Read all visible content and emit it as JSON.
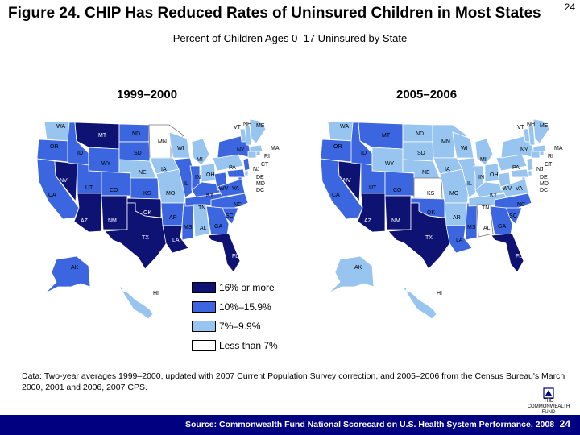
{
  "title": "Figure 24. CHIP Has Reduced Rates of Uninsured Children in Most States",
  "slide_number_top": "24",
  "subtitle": "Percent of Children Ages 0–17 Uninsured by State",
  "colors": {
    "cat1": "#0d1273",
    "cat2": "#3c66e0",
    "cat3": "#98c4f0",
    "cat4": "#ffffff",
    "footer_bg": "#000080",
    "border": "#ffffff"
  },
  "legend": [
    {
      "label": "16% or more",
      "color": "#0d1273"
    },
    {
      "label": "10%–15.9%",
      "color": "#3c66e0"
    },
    {
      "label": "7%–9.9%",
      "color": "#98c4f0"
    },
    {
      "label": "Less than 7%",
      "color": "#ffffff"
    }
  ],
  "maps": [
    {
      "period": "1999–2000",
      "states": {
        "WA": 3,
        "OR": 2,
        "CA": 2,
        "NV": 1,
        "ID": 2,
        "MT": 1,
        "WY": 2,
        "UT": 2,
        "AZ": 1,
        "CO": 2,
        "NM": 1,
        "ND": 2,
        "SD": 2,
        "NE": 3,
        "KS": 2,
        "OK": 1,
        "TX": 1,
        "MN": 4,
        "IA": 3,
        "MO": 3,
        "AR": 2,
        "LA": 1,
        "WI": 3,
        "IL": 2,
        "MS": 2,
        "MI": 3,
        "IN": 2,
        "KY": 2,
        "TN": 2,
        "AL": 3,
        "OH": 3,
        "WV": 2,
        "VA": 2,
        "NC": 2,
        "SC": 2,
        "GA": 2,
        "FL": 1,
        "PA": 3,
        "NY": 2,
        "VT": 3,
        "NH": 3,
        "ME": 3,
        "MA": 3,
        "RI": 3,
        "CT": 3,
        "NJ": 2,
        "DE": 3,
        "MD": 2,
        "DC": 2,
        "AK": 2,
        "HI": 3
      }
    },
    {
      "period": "2005–2006",
      "states": {
        "WA": 3,
        "OR": 2,
        "CA": 2,
        "NV": 1,
        "ID": 2,
        "MT": 2,
        "WY": 3,
        "UT": 2,
        "AZ": 1,
        "CO": 2,
        "NM": 1,
        "ND": 3,
        "SD": 3,
        "NE": 3,
        "KS": 4,
        "OK": 2,
        "TX": 1,
        "MN": 3,
        "IA": 3,
        "MO": 3,
        "AR": 3,
        "LA": 2,
        "WI": 3,
        "IL": 3,
        "MS": 2,
        "MI": 3,
        "IN": 3,
        "KY": 3,
        "TN": 3,
        "AL": 4,
        "OH": 3,
        "WV": 3,
        "VA": 3,
        "NC": 2,
        "SC": 2,
        "GA": 2,
        "FL": 1,
        "PA": 3,
        "NY": 3,
        "VT": 3,
        "NH": 3,
        "ME": 3,
        "MA": 3,
        "RI": 3,
        "CT": 3,
        "NJ": 3,
        "DE": 3,
        "MD": 3,
        "DC": 3,
        "AK": 3,
        "HI": 3
      }
    }
  ],
  "note": "Data: Two-year averages 1999–2000, updated with 2007 Current Population Survey correction, and 2005–2006 from the Census Bureau's March 2000, 2001 and 2006, 2007 CPS.",
  "logo": {
    "line1": "THE",
    "line2": "COMMONWEALTH",
    "line3": "FUND"
  },
  "footer": {
    "source": "Source: Commonwealth Fund National Scorecard on U.S. Health System Performance, 2008",
    "page_number": "24"
  }
}
